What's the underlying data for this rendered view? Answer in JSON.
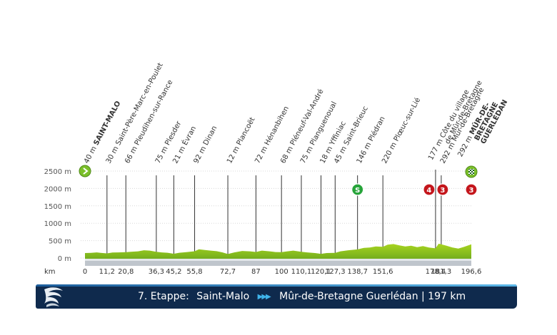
{
  "chart_data": {
    "type": "area",
    "y_unit": "m",
    "x_unit": "km",
    "yticks": [
      "2500 m",
      "2000 m",
      "1500 m",
      "1000 m",
      "500 m",
      "0 m"
    ],
    "ytick_values": [
      2500,
      2000,
      1500,
      1000,
      500,
      0
    ],
    "ylim": [
      0,
      2500
    ],
    "xlim": [
      0,
      196.6
    ],
    "km_ticks": [
      {
        "km": 0,
        "label": "0"
      },
      {
        "km": 11.2,
        "label": "11,2"
      },
      {
        "km": 20.8,
        "label": "20,8"
      },
      {
        "km": 36.3,
        "label": "36,3"
      },
      {
        "km": 45.2,
        "label": "45,2"
      },
      {
        "km": 55.8,
        "label": "55,8"
      },
      {
        "km": 72.7,
        "label": "72,7"
      },
      {
        "km": 87,
        "label": "87"
      },
      {
        "km": 100,
        "label": "100"
      },
      {
        "km": 110.1,
        "label": "110,1"
      },
      {
        "km": 120.1,
        "label": "120,1"
      },
      {
        "km": 127.3,
        "label": "127,3"
      },
      {
        "km": 138.7,
        "label": "138,7"
      },
      {
        "km": 151.6,
        "label": "151,6"
      },
      {
        "km": 178.4,
        "label": "178,4"
      },
      {
        "km": 181.3,
        "label": "181,3"
      },
      {
        "km": 196.6,
        "label": "196,6"
      }
    ],
    "towns": [
      {
        "km": 0,
        "alt": "40 m",
        "name": "SAINT-MALO",
        "bold": true
      },
      {
        "km": 11.2,
        "alt": "30 m",
        "name": "Saint-Père-Marc-en-Poulet"
      },
      {
        "km": 20.8,
        "alt": "66 m",
        "name": "Pleudihen-sur-Rance"
      },
      {
        "km": 36.3,
        "alt": "75 m",
        "name": "Plesder"
      },
      {
        "km": 45.2,
        "alt": "21 m",
        "name": "Évran"
      },
      {
        "km": 55.8,
        "alt": "92 m",
        "name": "Dinan"
      },
      {
        "km": 72.7,
        "alt": "12 m",
        "name": "Plancoët"
      },
      {
        "km": 87,
        "alt": "72 m",
        "name": "Hénanbihen"
      },
      {
        "km": 100,
        "alt": "68 m",
        "name": "Pléneuf-Val-André"
      },
      {
        "km": 110.1,
        "alt": "75 m",
        "name": "Planguenoual"
      },
      {
        "km": 120.1,
        "alt": "18 m",
        "name": "Yffiniac"
      },
      {
        "km": 127.3,
        "alt": "45 m",
        "name": "Saint-Brieuc"
      },
      {
        "km": 138.7,
        "alt": "146 m",
        "name": "Plédran"
      },
      {
        "km": 151.6,
        "alt": "220 m",
        "name": "Plœuc-sur-Lié"
      },
      {
        "km": 178.4,
        "alt": "177 m",
        "name": "Côte du village de Mûr-de-Bretagne",
        "lines": [
          "Côte du village",
          "de Mûr-de-Bretagne"
        ]
      },
      {
        "km": 181.3,
        "alt": "292 m",
        "name": "Mûr-de-Bretagne"
      },
      {
        "km": 196.6,
        "alt": "292 m",
        "name": "MÛR-DE-BRETAGNE GUERLÉDAN",
        "lines": [
          "MÛR-DE-",
          "BRETAGNE",
          "GUERLÉDAN"
        ],
        "bold": true
      }
    ],
    "profile": [
      [
        0,
        40
      ],
      [
        3,
        45
      ],
      [
        6,
        60
      ],
      [
        8,
        45
      ],
      [
        11.2,
        30
      ],
      [
        14,
        55
      ],
      [
        17,
        60
      ],
      [
        20.8,
        66
      ],
      [
        24,
        80
      ],
      [
        27,
        90
      ],
      [
        30,
        120
      ],
      [
        33,
        110
      ],
      [
        36.3,
        75
      ],
      [
        39,
        60
      ],
      [
        42,
        50
      ],
      [
        45.2,
        21
      ],
      [
        48,
        50
      ],
      [
        52,
        70
      ],
      [
        55.8,
        92
      ],
      [
        58,
        150
      ],
      [
        61,
        130
      ],
      [
        64,
        110
      ],
      [
        67,
        95
      ],
      [
        70,
        60
      ],
      [
        72.7,
        12
      ],
      [
        76,
        60
      ],
      [
        80,
        100
      ],
      [
        84,
        90
      ],
      [
        87,
        72
      ],
      [
        90,
        110
      ],
      [
        94,
        90
      ],
      [
        97,
        70
      ],
      [
        100,
        68
      ],
      [
        103,
        90
      ],
      [
        106,
        110
      ],
      [
        110.1,
        75
      ],
      [
        113,
        60
      ],
      [
        117,
        40
      ],
      [
        120.1,
        18
      ],
      [
        123,
        40
      ],
      [
        127.3,
        45
      ],
      [
        130,
        90
      ],
      [
        134,
        120
      ],
      [
        138.7,
        146
      ],
      [
        142,
        190
      ],
      [
        145,
        200
      ],
      [
        148,
        230
      ],
      [
        151.6,
        220
      ],
      [
        154,
        280
      ],
      [
        157,
        300
      ],
      [
        160,
        260
      ],
      [
        163,
        230
      ],
      [
        166,
        250
      ],
      [
        169,
        210
      ],
      [
        172,
        240
      ],
      [
        175,
        200
      ],
      [
        178.4,
        177
      ],
      [
        180,
        310
      ],
      [
        181.3,
        292
      ],
      [
        184,
        250
      ],
      [
        187,
        200
      ],
      [
        190,
        170
      ],
      [
        193,
        220
      ],
      [
        196.6,
        292
      ]
    ],
    "markers": [
      {
        "km": 0,
        "type": "start",
        "symbol": "arrow"
      },
      {
        "km": 138.7,
        "type": "sprint",
        "label": "S"
      },
      {
        "km": 178.4,
        "type": "climb",
        "label": "4"
      },
      {
        "km": 181.3,
        "type": "climb",
        "label": "3"
      },
      {
        "km": 196.6,
        "type": "climb",
        "label": "3"
      },
      {
        "km": 196.6,
        "type": "finish",
        "symbol": "checkered-flag"
      }
    ],
    "colors": {
      "profile_top": "#9fcc1a",
      "profile_bottom": "#5f9e1e",
      "sprint": "#27a43a",
      "climb": "#c4161c",
      "start": "#78b82a"
    }
  },
  "banner": {
    "stage": "7. Etappe:",
    "from": "Saint-Malo",
    "to": "Mûr-de-Bretagne Guerlédan | 197 km",
    "arrows": "▶▶▶",
    "logo": "stage-logo-icon"
  }
}
